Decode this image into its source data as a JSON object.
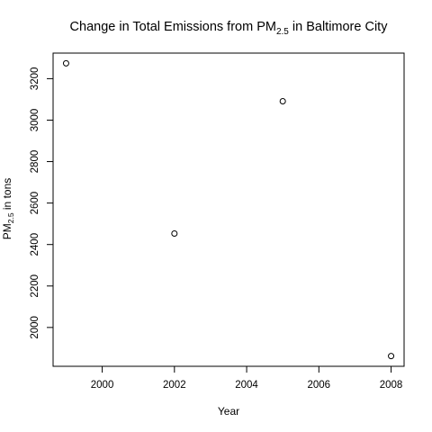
{
  "chart_data": {
    "type": "scatter",
    "title": {
      "main": "Change in Total Emissions from PM",
      "subscript": "2.5",
      "suffix": " in Baltimore City"
    },
    "xlabel": "Year",
    "ylabel": {
      "main": "PM",
      "subscript": "2.5",
      "suffix": " in tons"
    },
    "x": [
      1999,
      2002,
      2005,
      2008
    ],
    "y": [
      3274,
      2453,
      3091,
      1862
    ],
    "xlim": [
      1998.64,
      2008.36
    ],
    "ylim": [
      1812.7,
      3323.3
    ],
    "xticks": [
      2000,
      2002,
      2004,
      2006,
      2008
    ],
    "yticks": [
      2000,
      2200,
      2400,
      2600,
      2800,
      3000,
      3200
    ],
    "marker": "open-circle",
    "grid": false,
    "legend": "none"
  }
}
